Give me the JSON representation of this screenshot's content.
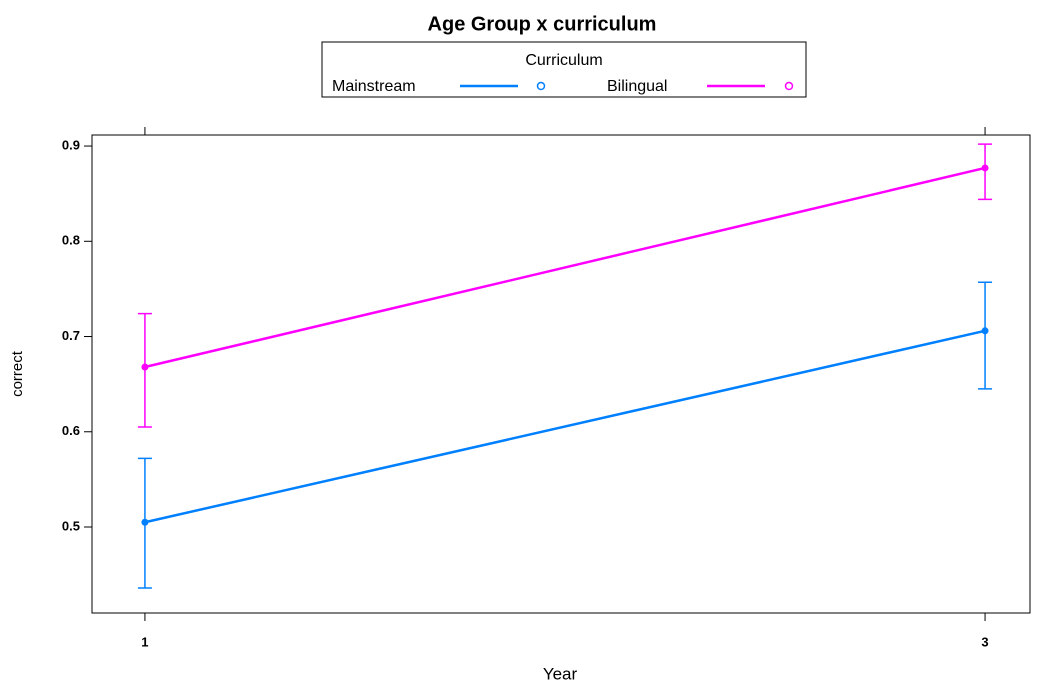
{
  "chart_data": {
    "type": "line",
    "title": "Age Group x curriculum",
    "legend_title": "Curriculum",
    "legend_position": "top",
    "x_label": "Year",
    "y_label": "correct",
    "x": [
      1,
      3
    ],
    "xlim": [
      0.874,
      3.107
    ],
    "xticks": [
      1,
      3
    ],
    "ylim": [
      0.4097,
      0.9116
    ],
    "yticks": [
      0.5,
      0.6,
      0.7,
      0.8,
      0.9
    ],
    "series": [
      {
        "name": "Mainstream",
        "color": "#0080ff",
        "values": [
          0.505,
          0.706
        ],
        "upper": [
          0.572,
          0.757
        ],
        "lower": [
          0.436,
          0.645
        ]
      },
      {
        "name": "Bilingual",
        "color": "#ff00ff",
        "values": [
          0.668,
          0.877
        ],
        "upper": [
          0.724,
          0.902
        ],
        "lower": [
          0.605,
          0.844
        ]
      }
    ]
  }
}
